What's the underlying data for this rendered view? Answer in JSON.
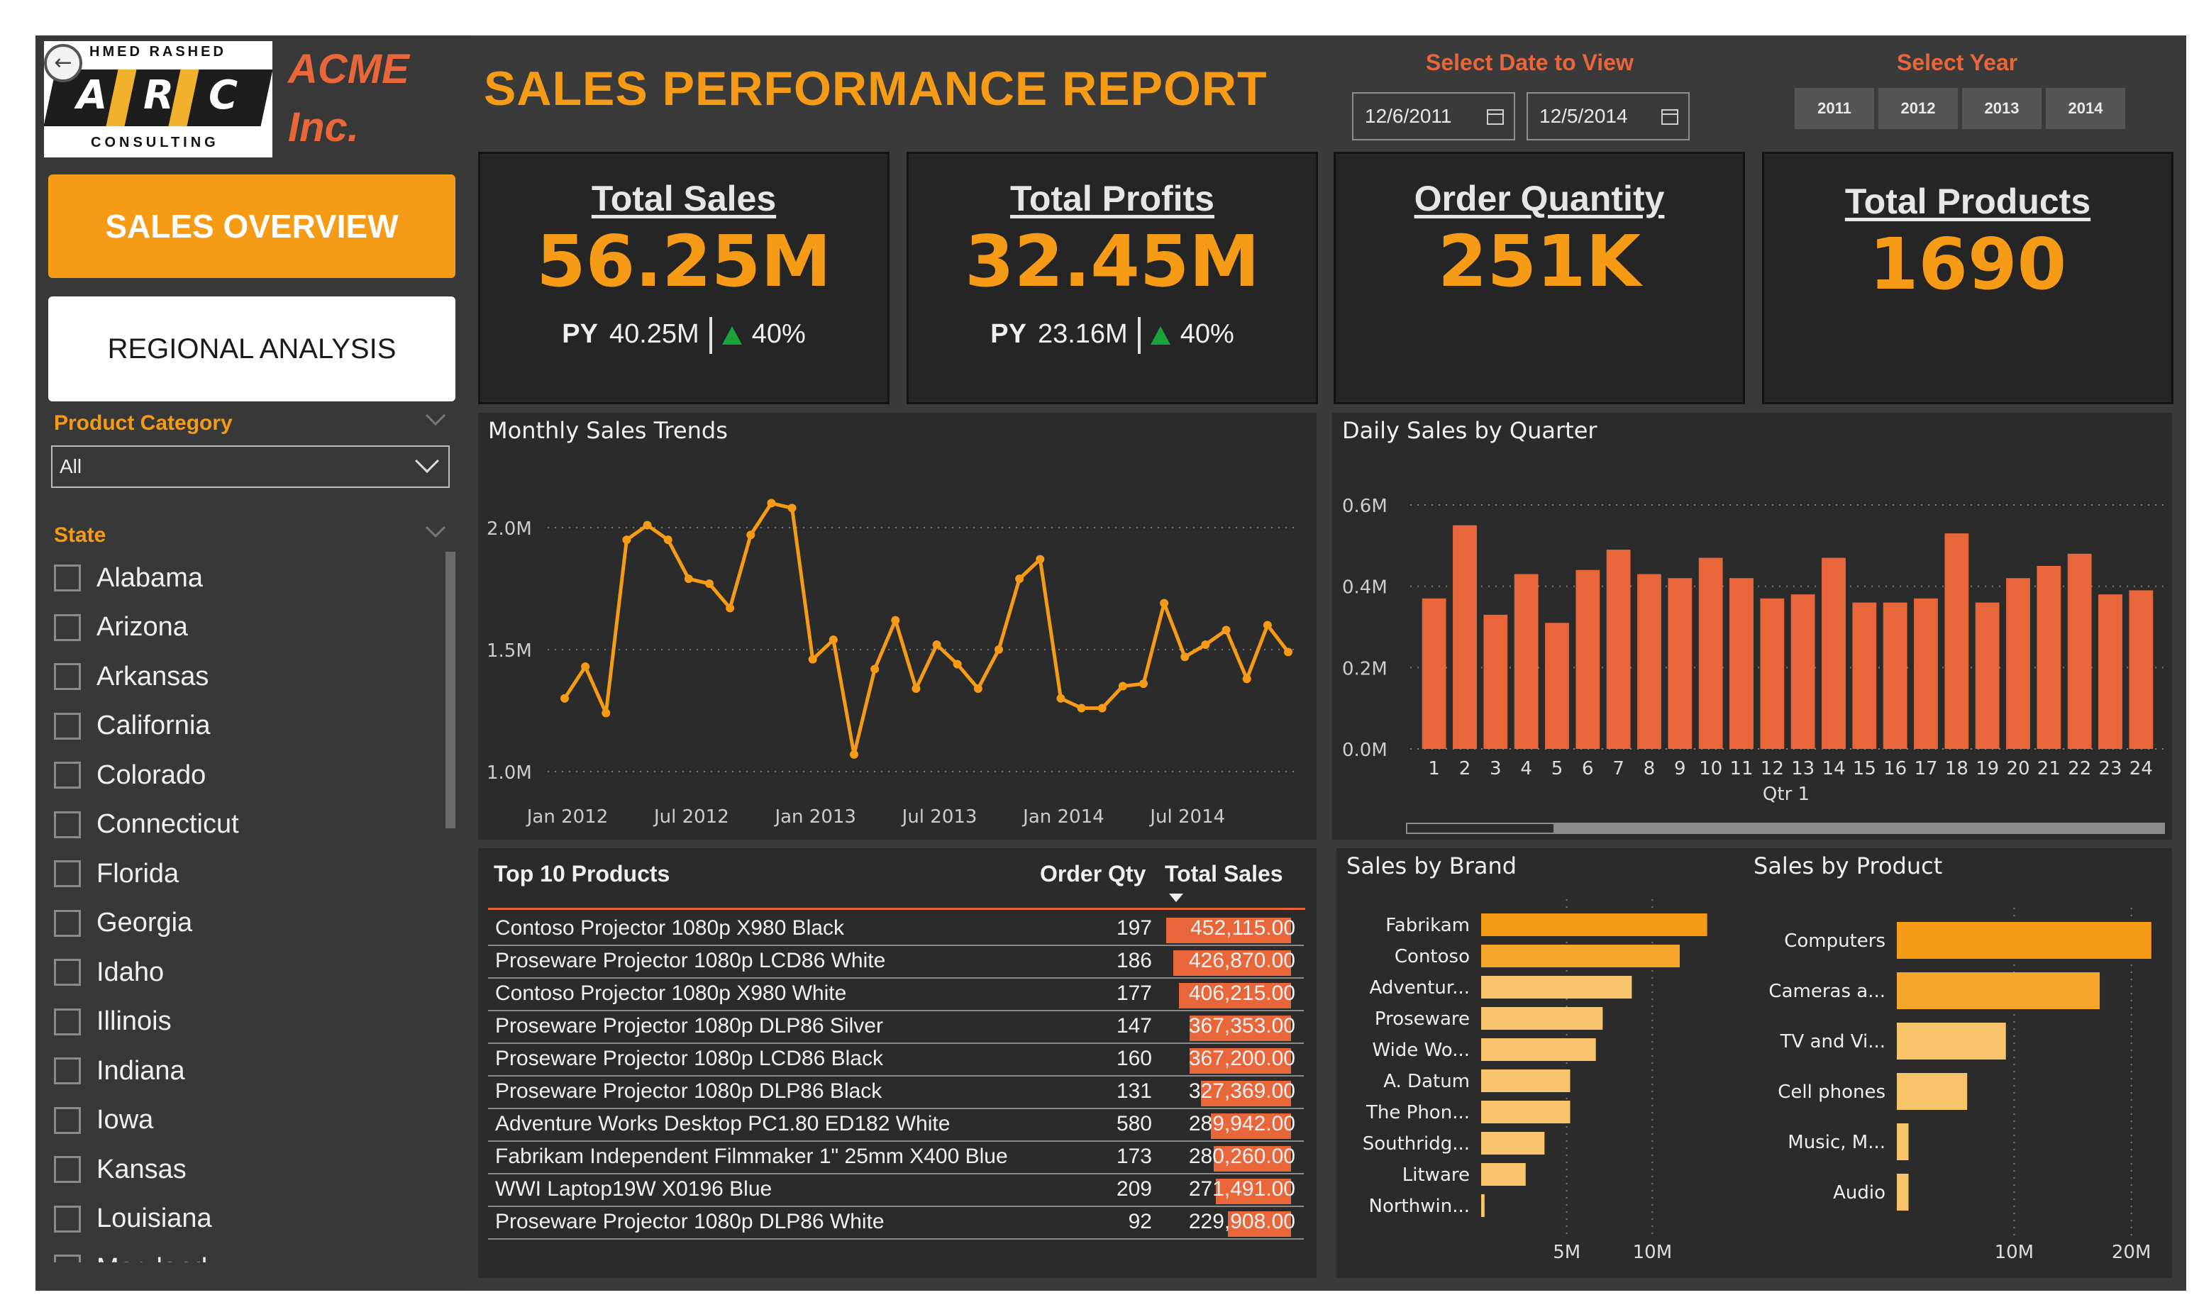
{
  "logo": {
    "top_text": "HMED RASHED",
    "letters": [
      "A",
      "R",
      "C"
    ],
    "bottom_text": "CONSULTING"
  },
  "company": {
    "line1": "ACME",
    "line2": "Inc."
  },
  "report_title": "SALES PERFORMANCE REPORT",
  "nav": {
    "sales_overview": "SALES OVERVIEW",
    "regional_analysis": "REGIONAL ANALYSIS"
  },
  "filters": {
    "date_label": "Select Date to View",
    "date_start": "12/6/2011",
    "date_end": "12/5/2014",
    "year_label": "Select Year",
    "years": [
      "2011",
      "2012",
      "2013",
      "2014"
    ],
    "product_category_label": "Product Category",
    "product_category_value": "All",
    "state_label": "State",
    "states": [
      "Alabama",
      "Arizona",
      "Arkansas",
      "California",
      "Colorado",
      "Connecticut",
      "Florida",
      "Georgia",
      "Idaho",
      "Illinois",
      "Indiana",
      "Iowa",
      "Kansas",
      "Louisiana",
      "Maryland"
    ]
  },
  "kpis": {
    "total_sales": {
      "title": "Total Sales",
      "value": "56.25M",
      "py_label": "PY",
      "py_value": "40.25M",
      "change": "40%"
    },
    "total_profits": {
      "title": "Total Profits",
      "value": "32.45M",
      "py_label": "PY",
      "py_value": "23.16M",
      "change": "40%"
    },
    "order_quantity": {
      "title": "Order Quantity",
      "value": "251K"
    },
    "total_products": {
      "title": "Total Products",
      "value": "1690"
    }
  },
  "colors": {
    "accent": "#f59b16",
    "bar": "#e8663a",
    "brand_light": "#f7c46b",
    "up": "#1aa33a"
  },
  "top_products": {
    "title": "Top 10 Products",
    "col_qty": "Order Qty",
    "col_sales": "Total Sales",
    "rows": [
      {
        "name": "Contoso Projector 1080p X980 Black",
        "qty": "197",
        "sales": "452,115.00",
        "raw": 452115
      },
      {
        "name": "Proseware Projector 1080p LCD86 White",
        "qty": "186",
        "sales": "426,870.00",
        "raw": 426870
      },
      {
        "name": "Contoso Projector 1080p X980 White",
        "qty": "177",
        "sales": "406,215.00",
        "raw": 406215
      },
      {
        "name": "Proseware Projector 1080p DLP86 Silver",
        "qty": "147",
        "sales": "367,353.00",
        "raw": 367353
      },
      {
        "name": "Proseware Projector 1080p LCD86 Black",
        "qty": "160",
        "sales": "367,200.00",
        "raw": 367200
      },
      {
        "name": "Proseware Projector 1080p DLP86 Black",
        "qty": "131",
        "sales": "327,369.00",
        "raw": 327369
      },
      {
        "name": "Adventure Works Desktop PC1.80 ED182 White",
        "qty": "580",
        "sales": "289,942.00",
        "raw": 289942
      },
      {
        "name": "Fabrikam Independent Filmmaker 1\" 25mm X400 Blue",
        "qty": "173",
        "sales": "280,260.00",
        "raw": 280260
      },
      {
        "name": "WWI Laptop19W X0196 Blue",
        "qty": "209",
        "sales": "271,491.00",
        "raw": 271491
      },
      {
        "name": "Proseware Projector 1080p DLP86 White",
        "qty": "92",
        "sales": "229,908.00",
        "raw": 229908
      }
    ]
  },
  "chart_data": [
    {
      "type": "line",
      "title": "Monthly Sales Trends",
      "ylim": [
        1.0,
        2.2
      ],
      "yticks": [
        1.0,
        1.5,
        2.0
      ],
      "yticklabels": [
        "1.0M",
        "1.5M",
        "2.0M"
      ],
      "xticklabels": [
        "Jan 2012",
        "Jul 2012",
        "Jan 2013",
        "Jul 2013",
        "Jan 2014",
        "Jul 2014"
      ],
      "xtick_index": [
        1,
        7,
        13,
        19,
        25,
        31
      ],
      "values": [
        1.3,
        1.43,
        1.24,
        1.95,
        2.01,
        1.95,
        1.79,
        1.77,
        1.67,
        1.97,
        2.1,
        2.08,
        1.46,
        1.54,
        1.07,
        1.42,
        1.62,
        1.34,
        1.52,
        1.44,
        1.34,
        1.5,
        1.79,
        1.87,
        1.3,
        1.26,
        1.26,
        1.35,
        1.36,
        1.69,
        1.47,
        1.52,
        1.58,
        1.38,
        1.6,
        1.49
      ]
    },
    {
      "type": "bar",
      "title": "Daily Sales by Quarter",
      "xlabel": "Qtr 1",
      "ylim": [
        0,
        0.6
      ],
      "yticks": [
        0,
        0.2,
        0.4,
        0.6
      ],
      "yticklabels": [
        "0.0M",
        "0.2M",
        "0.4M",
        "0.6M"
      ],
      "categories": [
        "1",
        "2",
        "3",
        "4",
        "5",
        "6",
        "7",
        "8",
        "9",
        "10",
        "11",
        "12",
        "13",
        "14",
        "15",
        "16",
        "17",
        "18",
        "19",
        "20",
        "21",
        "22",
        "23",
        "24"
      ],
      "values": [
        0.37,
        0.55,
        0.33,
        0.43,
        0.31,
        0.44,
        0.49,
        0.43,
        0.42,
        0.47,
        0.42,
        0.37,
        0.38,
        0.47,
        0.36,
        0.36,
        0.37,
        0.53,
        0.36,
        0.42,
        0.45,
        0.48,
        0.38,
        0.39
      ]
    },
    {
      "type": "bar",
      "orientation": "horizontal",
      "title": "Sales by Brand",
      "categories": [
        "Fabrikam",
        "Contoso",
        "Adventur...",
        "Proseware",
        "Wide Wo...",
        "A. Datum",
        "The Phon...",
        "Southridg...",
        "Litware",
        "Northwin..."
      ],
      "values": [
        13.2,
        11.6,
        8.8,
        7.1,
        6.7,
        5.2,
        5.2,
        3.7,
        2.6,
        0.2
      ],
      "xticks": [
        5,
        10
      ],
      "xticklabels": [
        "5M",
        "10M"
      ],
      "xlim": [
        0,
        14.5
      ]
    },
    {
      "type": "bar",
      "orientation": "horizontal",
      "title": "Sales by Product",
      "categories": [
        "Computers",
        "Cameras a...",
        "TV and Vi...",
        "Cell phones",
        "Music, M...",
        "Audio"
      ],
      "values": [
        21.7,
        17.3,
        9.3,
        6.0,
        1.0,
        1.0
      ],
      "xticks": [
        10,
        20
      ],
      "xticklabels": [
        "10M",
        "20M"
      ],
      "xlim": [
        0,
        22.5
      ]
    }
  ]
}
